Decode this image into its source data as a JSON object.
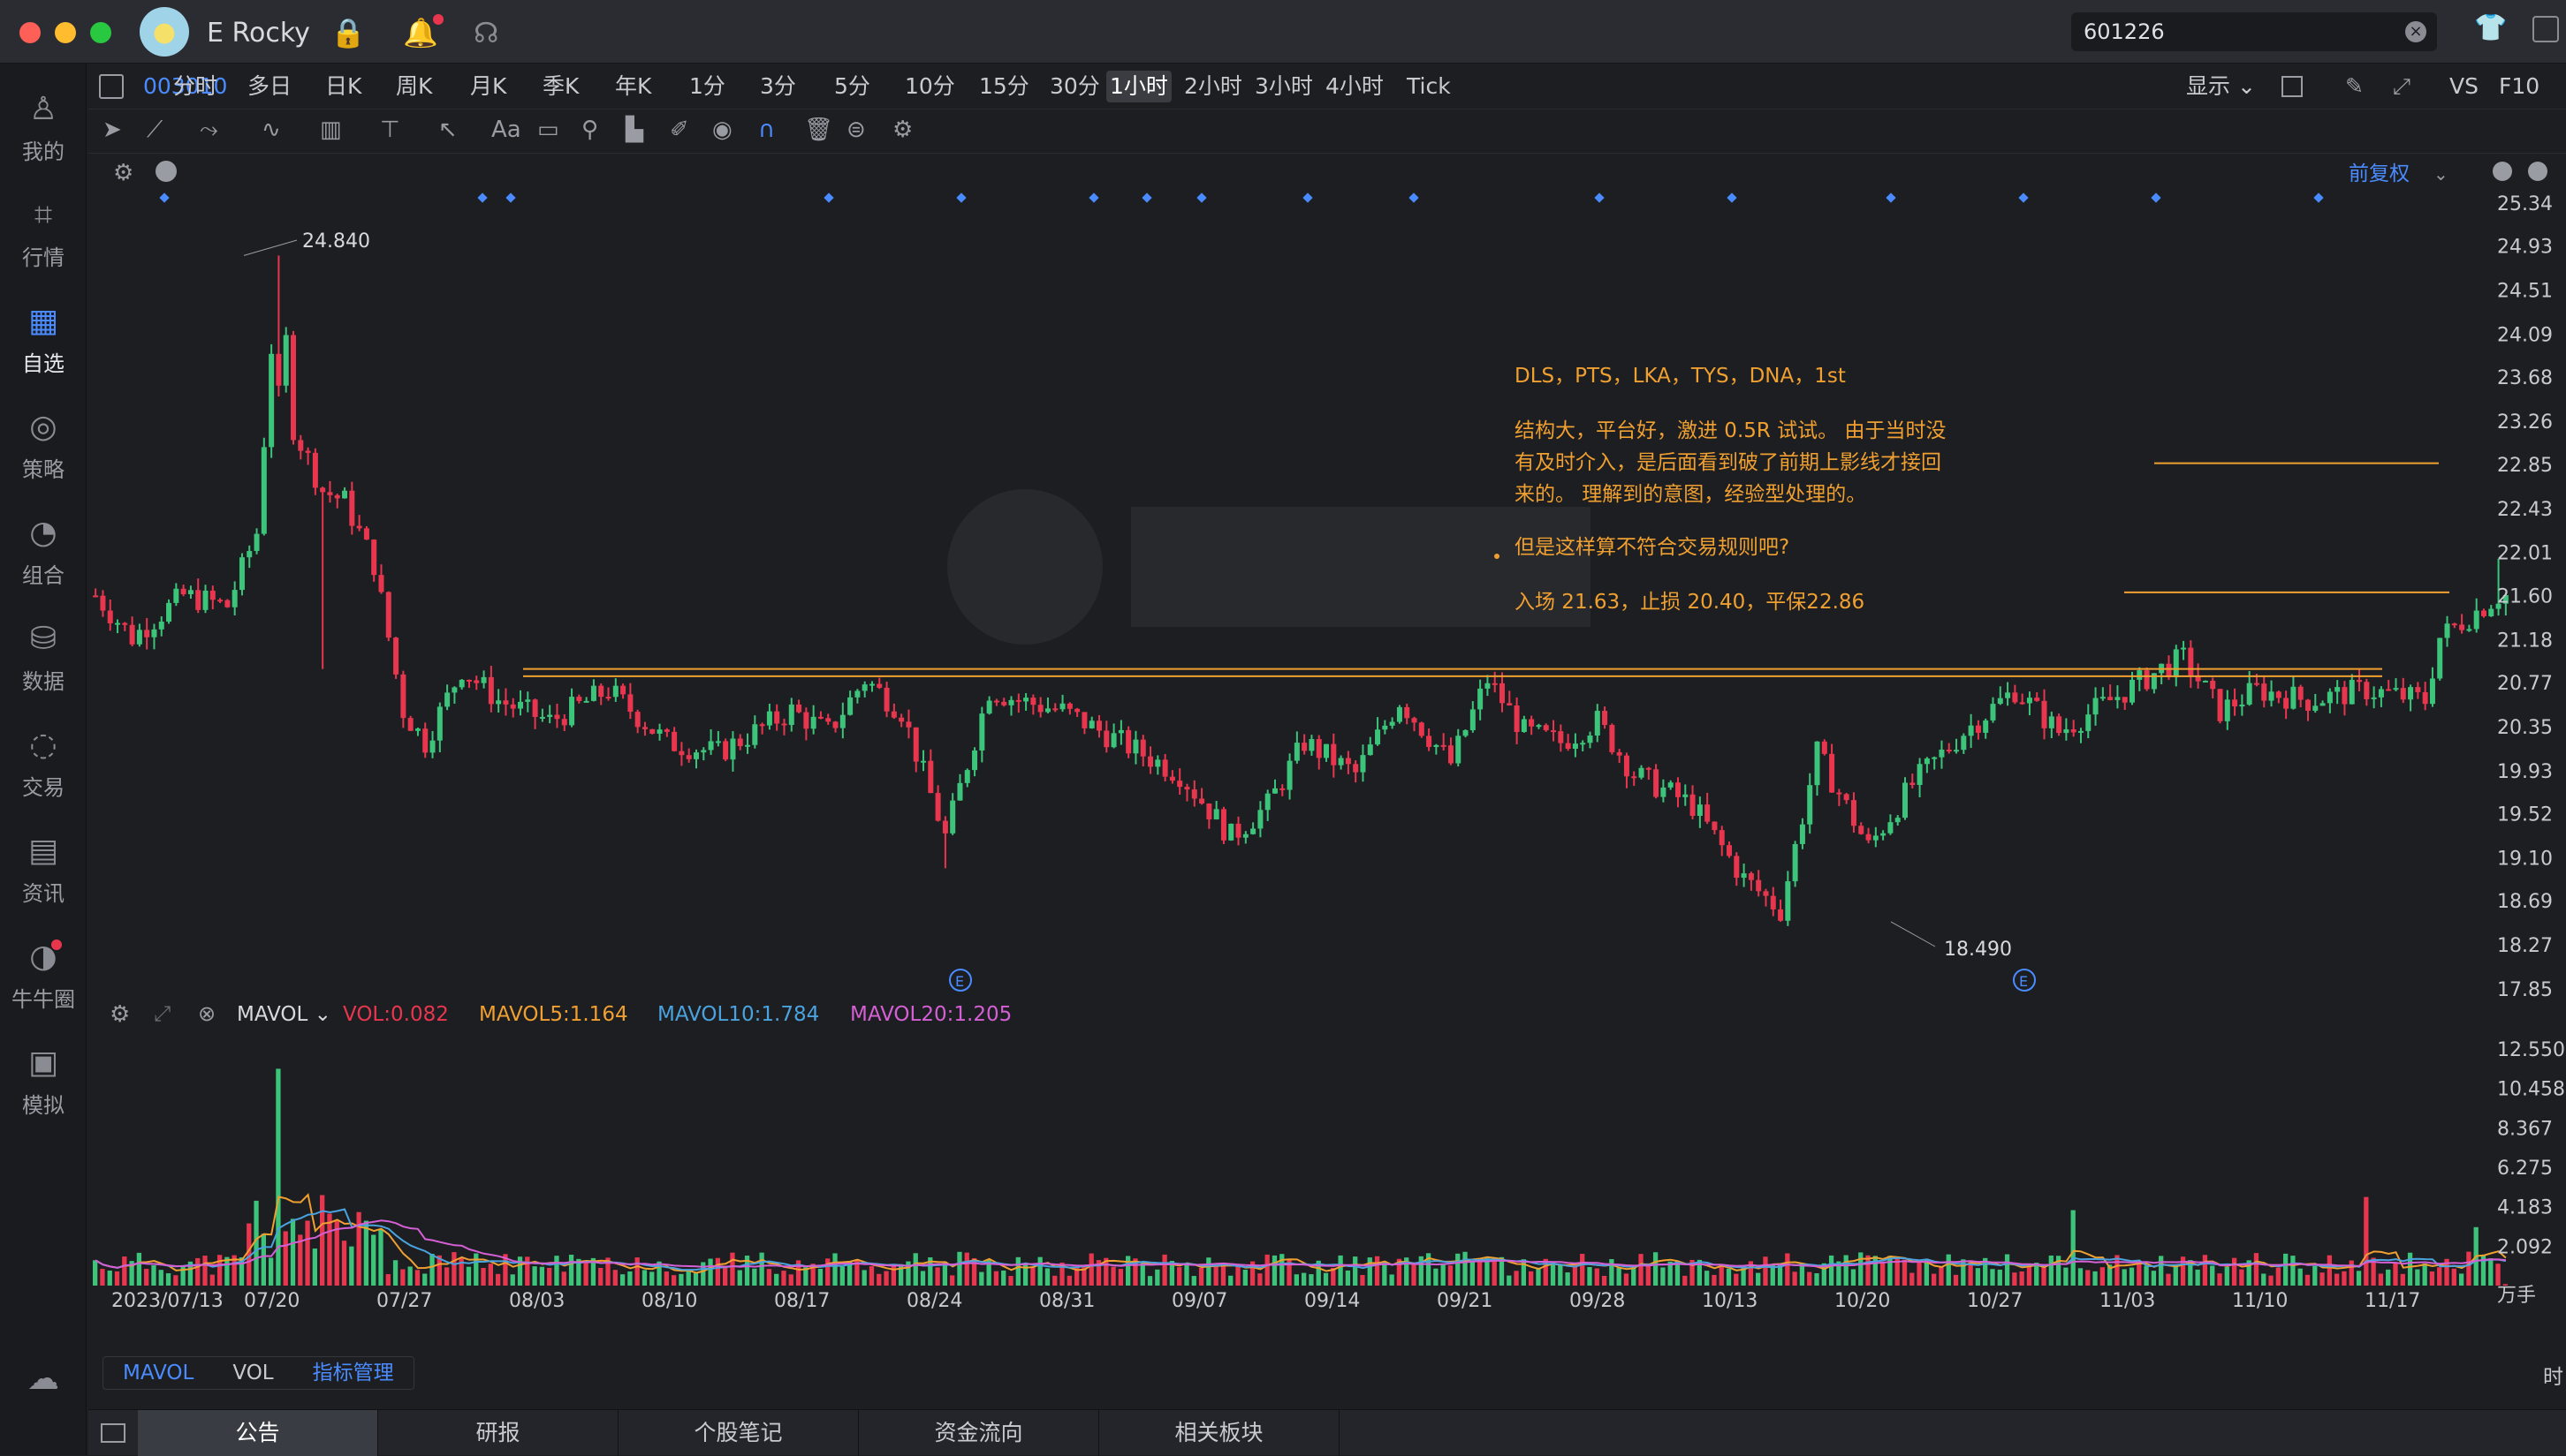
{
  "titlebar": {
    "user_name": "E Rocky",
    "search_value": "601226"
  },
  "sidebar": [
    {
      "label": "我的",
      "icon": "user-icon"
    },
    {
      "label": "行情",
      "icon": "market-chart-icon"
    },
    {
      "label": "自选",
      "icon": "watchlist-icon",
      "active": true
    },
    {
      "label": "策略",
      "icon": "strategy-icon"
    },
    {
      "label": "组合",
      "icon": "portfolio-pie-icon"
    },
    {
      "label": "数据",
      "icon": "database-icon"
    },
    {
      "label": "交易",
      "icon": "trade-icon"
    },
    {
      "label": "资讯",
      "icon": "news-icon"
    },
    {
      "label": "牛牛圈",
      "icon": "community-icon"
    },
    {
      "label": "模拟",
      "icon": "simulator-icon"
    }
  ],
  "periodbar": {
    "code": "003010",
    "periods": [
      "分时",
      "多日",
      "日K",
      "周K",
      "月K",
      "季K",
      "年K",
      "1分",
      "3分",
      "5分",
      "10分",
      "15分",
      "30分",
      "1小时",
      "2小时",
      "3小时",
      "4小时",
      "Tick"
    ],
    "active": "1小时",
    "right": {
      "display": "显示",
      "vs": "VS",
      "f10": "F10"
    }
  },
  "chart_header": {
    "adjust": "前复权"
  },
  "annotations": {
    "line1": "DLS，PTS，LKA，TYS，DNA，1st",
    "line2": "结构大，平台好，激进 0.5R 试试。 由于当时没",
    "line3": "有及时介入，是后面看到破了前期上影线才接回",
    "line4": "来的。 理解到的意图，经验型处理的。",
    "line5": "但是这样算不符合交易规则吧?",
    "line6": "入场 21.63，止损 20.40，平保22.86"
  },
  "price_labels": {
    "high": "24.840",
    "low": "18.490"
  },
  "price_axis": [
    "25.34",
    "24.93",
    "24.51",
    "24.09",
    "23.68",
    "23.26",
    "22.85",
    "22.43",
    "22.01",
    "21.60",
    "21.18",
    "20.77",
    "20.35",
    "19.93",
    "19.52",
    "19.10",
    "18.69",
    "18.27",
    "17.85"
  ],
  "vol_header": {
    "indicator": "MAVOL",
    "vol": "VOL:0.082",
    "ma5": "MAVOL5:1.164",
    "ma10": "MAVOL10:1.784",
    "ma20": "MAVOL20:1.205"
  },
  "vol_axis": [
    "12.550",
    "10.458",
    "8.367",
    "6.275",
    "4.183",
    "2.092",
    "万手"
  ],
  "date_axis": [
    "2023/07/13",
    "07/20",
    "07/27",
    "08/03",
    "08/10",
    "08/17",
    "08/24",
    "08/31",
    "09/07",
    "09/14",
    "09/21",
    "09/28",
    "10/13",
    "10/20",
    "10/27",
    "11/03",
    "11/10",
    "11/17"
  ],
  "indicator_tabs": [
    "MAVOL",
    "VOL",
    "指标管理"
  ],
  "bottom_tabs": [
    "公告",
    "研报",
    "个股笔记",
    "资金流向",
    "相关板块"
  ],
  "right_edge_label": "时",
  "colors": {
    "up": "#3cc47a",
    "down": "#e8364f",
    "accent": "#4a8cff",
    "annotation": "#f0a030",
    "ma5": "#f0a030",
    "ma10": "#4aa3df",
    "ma20": "#d55fd5"
  },
  "chart_data": {
    "type": "candlestick",
    "timeframe": "1小时",
    "ylim": [
      17.85,
      25.34
    ],
    "price_high": 24.84,
    "price_low": 18.49,
    "horizontal_lines": [
      20.9,
      20.83,
      22.86,
      21.63
    ],
    "anchors": [
      [
        0,
        21.6
      ],
      [
        5,
        21.2
      ],
      [
        12,
        21.6
      ],
      [
        18,
        21.5
      ],
      [
        22,
        22.2
      ],
      [
        25,
        24.84
      ],
      [
        27,
        23.2
      ],
      [
        31,
        22.6
      ],
      [
        34,
        22.5
      ],
      [
        38,
        21.9
      ],
      [
        42,
        20.5
      ],
      [
        45,
        20.2
      ],
      [
        50,
        20.9
      ],
      [
        55,
        20.6
      ],
      [
        62,
        20.4
      ],
      [
        70,
        20.7
      ],
      [
        78,
        20.2
      ],
      [
        85,
        20.1
      ],
      [
        95,
        20.5
      ],
      [
        100,
        20.3
      ],
      [
        105,
        20.8
      ],
      [
        110,
        20.5
      ],
      [
        116,
        19.3
      ],
      [
        122,
        20.7
      ],
      [
        126,
        20.6
      ],
      [
        132,
        20.5
      ],
      [
        140,
        20.2
      ],
      [
        148,
        19.9
      ],
      [
        155,
        19.3
      ],
      [
        160,
        19.6
      ],
      [
        165,
        20.2
      ],
      [
        172,
        19.9
      ],
      [
        178,
        20.6
      ],
      [
        185,
        20.0
      ],
      [
        190,
        20.8
      ],
      [
        195,
        20.3
      ],
      [
        200,
        20.2
      ],
      [
        205,
        20.4
      ],
      [
        210,
        19.9
      ],
      [
        218,
        19.6
      ],
      [
        225,
        18.9
      ],
      [
        230,
        18.6
      ],
      [
        235,
        20.1
      ],
      [
        242,
        19.2
      ],
      [
        248,
        19.8
      ],
      [
        255,
        20.3
      ],
      [
        262,
        20.7
      ],
      [
        268,
        20.3
      ],
      [
        275,
        20.6
      ],
      [
        282,
        20.9
      ],
      [
        285,
        21.0
      ],
      [
        290,
        20.5
      ],
      [
        295,
        20.7
      ],
      [
        302,
        20.6
      ],
      [
        310,
        20.7
      ],
      [
        318,
        20.6
      ],
      [
        320,
        21.2
      ],
      [
        324,
        21.4
      ],
      [
        328,
        21.6
      ]
    ],
    "volume_ylim": [
      0,
      12.55
    ],
    "volume_unit": "万手"
  }
}
